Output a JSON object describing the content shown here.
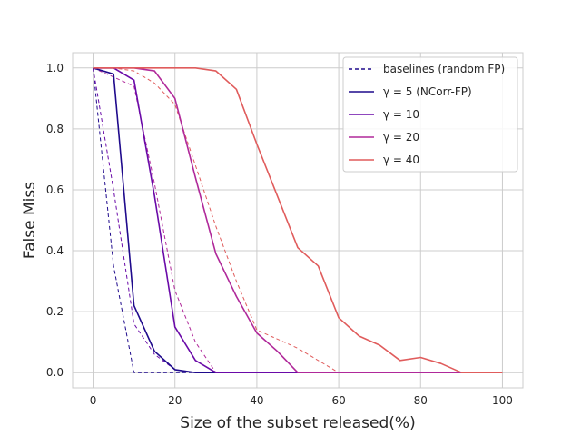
{
  "chart_data": {
    "type": "line",
    "xlabel": "Size of the subset released(%)",
    "ylabel": "False Miss",
    "xlim": [
      -5,
      105
    ],
    "ylim": [
      -0.05,
      1.05
    ],
    "xticks": [
      0,
      20,
      40,
      60,
      80,
      100
    ],
    "yticks": [
      0.0,
      0.2,
      0.4,
      0.6,
      0.8,
      1.0
    ],
    "ytick_labels": [
      "0.0",
      "0.2",
      "0.4",
      "0.6",
      "0.8",
      "1.0"
    ],
    "grid": true,
    "legend_position": "top-right",
    "legend": [
      {
        "label": "baselines (random FP)",
        "color": "#1f0a8c",
        "dashed": true
      },
      {
        "label": "γ = 5 (NCorr-FP)",
        "color": "#1f0a8c",
        "dashed": false
      },
      {
        "label": "γ = 10",
        "color": "#6a0aa8",
        "dashed": false
      },
      {
        "label": "γ = 20",
        "color": "#b0299a",
        "dashed": false
      },
      {
        "label": "γ = 40",
        "color": "#e05c5c",
        "dashed": false
      }
    ],
    "series": [
      {
        "name": "baselines (random FP)",
        "gamma": "5",
        "color": "#1f0a8c",
        "dashed": true,
        "x": [
          0,
          5,
          10,
          15,
          20,
          25,
          30,
          40,
          50,
          60,
          70,
          80,
          90,
          100
        ],
        "y": [
          1.0,
          0.35,
          0.0,
          0.0,
          0.0,
          0.0,
          0.0,
          0.0,
          0.0,
          0.0,
          0.0,
          0.0,
          0.0,
          0.0
        ]
      },
      {
        "name": "baselines (random FP)",
        "gamma": "10",
        "color": "#6a0aa8",
        "dashed": true,
        "x": [
          0,
          5,
          10,
          15,
          20,
          25,
          30,
          40,
          50,
          60,
          70,
          80,
          90,
          100
        ],
        "y": [
          1.0,
          0.6,
          0.16,
          0.06,
          0.01,
          0.0,
          0.0,
          0.0,
          0.0,
          0.0,
          0.0,
          0.0,
          0.0,
          0.0
        ]
      },
      {
        "name": "baselines (random FP)",
        "gamma": "20",
        "color": "#b0299a",
        "dashed": true,
        "x": [
          0,
          5,
          10,
          15,
          20,
          25,
          30,
          40,
          50,
          60,
          70,
          80,
          90,
          100
        ],
        "y": [
          1.0,
          0.97,
          0.94,
          0.62,
          0.27,
          0.1,
          0.0,
          0.0,
          0.0,
          0.0,
          0.0,
          0.0,
          0.0,
          0.0
        ]
      },
      {
        "name": "baselines (random FP)",
        "gamma": "40",
        "color": "#e05c5c",
        "dashed": true,
        "x": [
          0,
          5,
          10,
          15,
          20,
          25,
          30,
          35,
          40,
          45,
          50,
          55,
          60,
          70,
          80,
          90,
          100
        ],
        "y": [
          1.0,
          1.0,
          0.99,
          0.95,
          0.88,
          0.68,
          0.48,
          0.3,
          0.14,
          0.11,
          0.08,
          0.04,
          0.0,
          0.0,
          0.0,
          0.0,
          0.0
        ]
      },
      {
        "name": "γ = 5 (NCorr-FP)",
        "color": "#1f0a8c",
        "dashed": false,
        "x": [
          0,
          5,
          10,
          15,
          20,
          25,
          30,
          40,
          50,
          60,
          70,
          80,
          90,
          100
        ],
        "y": [
          1.0,
          0.98,
          0.22,
          0.07,
          0.01,
          0.0,
          0.0,
          0.0,
          0.0,
          0.0,
          0.0,
          0.0,
          0.0,
          0.0
        ]
      },
      {
        "name": "γ = 10",
        "color": "#6a0aa8",
        "dashed": false,
        "x": [
          0,
          5,
          10,
          15,
          20,
          25,
          30,
          40,
          50,
          60,
          70,
          80,
          90,
          100
        ],
        "y": [
          1.0,
          1.0,
          0.96,
          0.58,
          0.15,
          0.04,
          0.0,
          0.0,
          0.0,
          0.0,
          0.0,
          0.0,
          0.0,
          0.0
        ]
      },
      {
        "name": "γ = 20",
        "color": "#b0299a",
        "dashed": false,
        "x": [
          0,
          5,
          10,
          15,
          20,
          25,
          30,
          35,
          40,
          45,
          50,
          60,
          70,
          80,
          90,
          100
        ],
        "y": [
          1.0,
          1.0,
          1.0,
          0.99,
          0.9,
          0.64,
          0.39,
          0.25,
          0.13,
          0.07,
          0.0,
          0.0,
          0.0,
          0.0,
          0.0,
          0.0
        ]
      },
      {
        "name": "γ = 40",
        "color": "#e05c5c",
        "dashed": false,
        "x": [
          0,
          5,
          10,
          15,
          20,
          25,
          30,
          35,
          40,
          45,
          50,
          55,
          60,
          65,
          70,
          75,
          80,
          85,
          90,
          100
        ],
        "y": [
          1.0,
          1.0,
          1.0,
          1.0,
          1.0,
          1.0,
          0.99,
          0.93,
          0.75,
          0.58,
          0.41,
          0.35,
          0.18,
          0.12,
          0.09,
          0.04,
          0.05,
          0.03,
          0.0,
          0.0
        ]
      }
    ]
  }
}
